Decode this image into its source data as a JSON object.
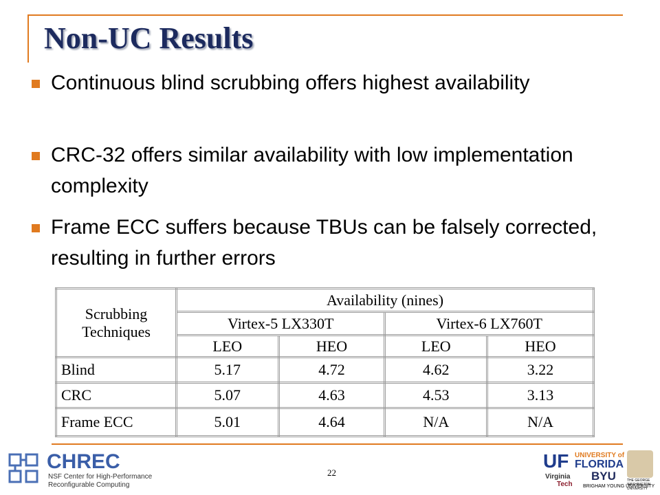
{
  "slide": {
    "title": "Non-UC Results",
    "bullets": [
      "Continuous blind scrubbing offers highest availability",
      "CRC-32 offers similar availability with low implementation complexity",
      "Frame ECC suffers because TBUs can be falsely corrected, resulting in further errors"
    ],
    "table": {
      "corner": "Scrubbing Techniques",
      "top_header": "Availability (nines)",
      "devices": [
        "Virtex-5 LX330T",
        "Virtex-6 LX760T"
      ],
      "orbits": [
        "LEO",
        "HEO",
        "LEO",
        "HEO"
      ],
      "rows": [
        [
          "Blind",
          "5.17",
          "4.72",
          "4.62",
          "3.22"
        ],
        [
          "CRC",
          "5.07",
          "4.63",
          "4.53",
          "3.13"
        ],
        [
          "Frame ECC",
          "5.01",
          "4.64",
          "N/A",
          "N/A"
        ]
      ]
    },
    "page_number": "22",
    "logos": {
      "chrec": "CHREC",
      "chrec_line1": "NSF Center for High-Performance",
      "chrec_line2": "Reconfigurable Computing",
      "uf": "UF",
      "uf_line1": "UNIVERSITY of",
      "uf_line2": "FLORIDA",
      "vt_line1": "Virginia",
      "vt_line2": "Tech",
      "byu": "BYU",
      "byu_line": "BRIGHAM YOUNG UNIVERSITY",
      "gwu": "THE GEORGE WASHINGTON UNIVERSITY"
    }
  }
}
